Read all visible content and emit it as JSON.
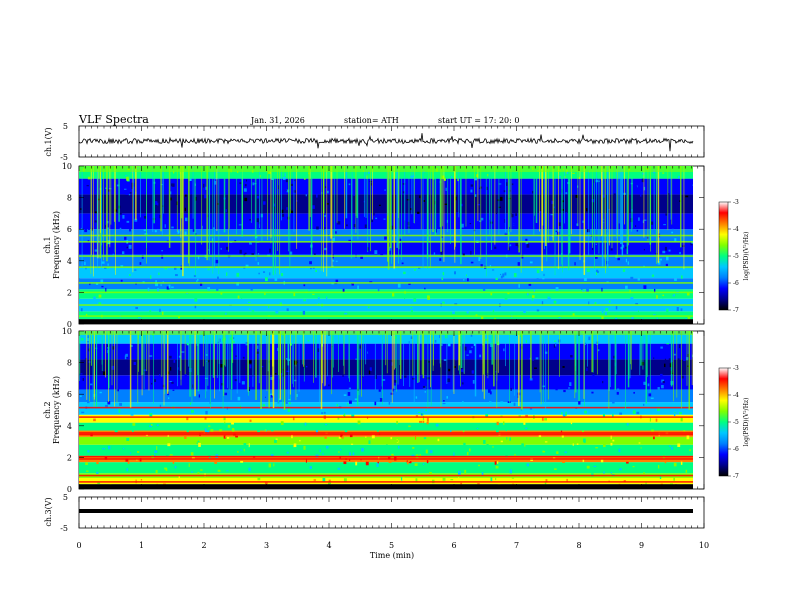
{
  "header": {
    "title": "VLF Spectra",
    "date": "Jan. 31, 2026",
    "station": "station= ATH",
    "start": "start UT =  17: 20: 0"
  },
  "chart_data": [
    {
      "type": "line",
      "name": "ch1-waveform",
      "ylabel": "ch.1(V)",
      "yticks": [
        "5",
        "-5"
      ],
      "ylim": [
        -5,
        5
      ],
      "xlim": [
        0,
        10
      ]
    },
    {
      "type": "heatmap",
      "name": "ch1-spectrogram",
      "ylabel_top": "ch.1",
      "ylabel": "Frequency (kHz)",
      "yticks": [
        "0",
        "2",
        "4",
        "6",
        "8",
        "10"
      ],
      "ylim": [
        0,
        10
      ],
      "xlim": [
        0,
        9.8
      ],
      "colorbar": {
        "label": "log(PSD)(V²/Hz)",
        "ticks": [
          "-3",
          "-4",
          "-5",
          "-6",
          "-7"
        ],
        "range": [
          -7,
          -3
        ]
      }
    },
    {
      "type": "heatmap",
      "name": "ch2-spectrogram",
      "ylabel_top": "ch.2",
      "ylabel": "Frequency (kHz)",
      "yticks": [
        "0",
        "2",
        "4",
        "6",
        "8",
        "10"
      ],
      "ylim": [
        0,
        10
      ],
      "xlim": [
        0,
        9.8
      ],
      "colorbar": {
        "label": "log(PSD)(V²/Hz)",
        "ticks": [
          "-3",
          "-4",
          "-5",
          "-6",
          "-7"
        ],
        "range": [
          -7,
          -3
        ]
      }
    },
    {
      "type": "line",
      "name": "ch3-waveform",
      "ylabel": "ch.3(V)",
      "yticks": [
        "5",
        "-5"
      ],
      "ylim": [
        -5,
        5
      ],
      "xlim": [
        0,
        10
      ]
    }
  ],
  "xaxis": {
    "label": "Time (min)",
    "ticks": [
      "0",
      "1",
      "2",
      "3",
      "4",
      "5",
      "6",
      "7",
      "8",
      "9",
      "10"
    ],
    "range": [
      0,
      10
    ]
  },
  "colors": {
    "colormap": [
      "#000000",
      "#00008b",
      "#0000ff",
      "#0080ff",
      "#00c8ff",
      "#00ff80",
      "#80ff00",
      "#ffff00",
      "#ff8000",
      "#ff0000",
      "#ffffff"
    ]
  }
}
